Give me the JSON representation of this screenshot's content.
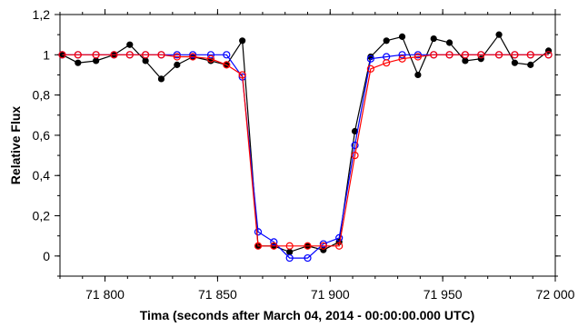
{
  "chart_data": {
    "type": "line",
    "title": "",
    "xlabel": "Tima (seconds after March 04, 2014 - 00:00:00.000 UTC)",
    "ylabel": "Relative Flux",
    "xlim": [
      71780,
      72000
    ],
    "ylim": [
      -0.1,
      1.2
    ],
    "x_ticks": [
      71800,
      71850,
      71900,
      71950,
      72000
    ],
    "x_tick_labels": [
      "71 800",
      "71 850",
      "71 900",
      "71 950",
      "72 000"
    ],
    "y_ticks": [
      0,
      0.2,
      0.4,
      0.6,
      0.8,
      1,
      1.2
    ],
    "y_tick_labels": [
      "0",
      "0,2",
      "0,4",
      "0,6",
      "0,8",
      "1",
      "1,2"
    ],
    "grid": false,
    "legend": "none",
    "series": [
      {
        "color": "#000000",
        "marker": "filled-circle",
        "x": [
          71781,
          71788,
          71796,
          71804,
          71811,
          71818,
          71825,
          71832,
          71839,
          71847,
          71854,
          71861,
          71868,
          71875,
          71882,
          71890,
          71897,
          71904,
          71911,
          71918,
          71925,
          71932,
          71939,
          71946,
          71953,
          71960,
          71967,
          71975,
          71982,
          71989,
          71997
        ],
        "y": [
          1.0,
          0.96,
          0.97,
          1.0,
          1.05,
          0.97,
          0.88,
          0.95,
          0.99,
          0.97,
          0.95,
          1.07,
          0.05,
          0.05,
          0.02,
          0.05,
          0.03,
          0.07,
          0.62,
          0.99,
          1.07,
          1.09,
          0.9,
          1.08,
          1.06,
          0.97,
          0.98,
          1.1,
          0.96,
          0.95,
          1.02
        ]
      },
      {
        "color": "#0000ff",
        "marker": "open-circle",
        "x": [
          71781,
          71788,
          71796,
          71804,
          71811,
          71818,
          71825,
          71832,
          71839,
          71847,
          71854,
          71861,
          71868,
          71875,
          71882,
          71890,
          71897,
          71904,
          71911,
          71918,
          71925,
          71932,
          71939,
          71946,
          71953,
          71960,
          71967,
          71975,
          71982,
          71989,
          71997
        ],
        "y": [
          1.0,
          1.0,
          1.0,
          1.0,
          1.0,
          1.0,
          1.0,
          1.0,
          1.0,
          1.0,
          1.0,
          0.89,
          0.12,
          0.07,
          -0.01,
          -0.01,
          0.06,
          0.09,
          0.55,
          0.98,
          0.99,
          1.0,
          1.0,
          1.0,
          1.0,
          1.0,
          1.0,
          1.0,
          1.0,
          1.0,
          1.0
        ]
      },
      {
        "color": "#ff0000",
        "marker": "open-circle",
        "x": [
          71781,
          71788,
          71796,
          71804,
          71811,
          71818,
          71825,
          71832,
          71839,
          71847,
          71854,
          71861,
          71868,
          71875,
          71882,
          71890,
          71897,
          71904,
          71911,
          71918,
          71925,
          71932,
          71939,
          71946,
          71953,
          71960,
          71967,
          71975,
          71982,
          71989,
          71997
        ],
        "y": [
          1.0,
          1.0,
          1.0,
          1.0,
          1.0,
          1.0,
          1.0,
          0.99,
          0.99,
          0.98,
          0.95,
          0.9,
          0.05,
          0.05,
          0.05,
          0.05,
          0.05,
          0.05,
          0.5,
          0.93,
          0.96,
          0.98,
          0.99,
          1.0,
          1.0,
          1.0,
          1.0,
          1.0,
          1.0,
          1.0,
          1.0
        ]
      }
    ]
  }
}
